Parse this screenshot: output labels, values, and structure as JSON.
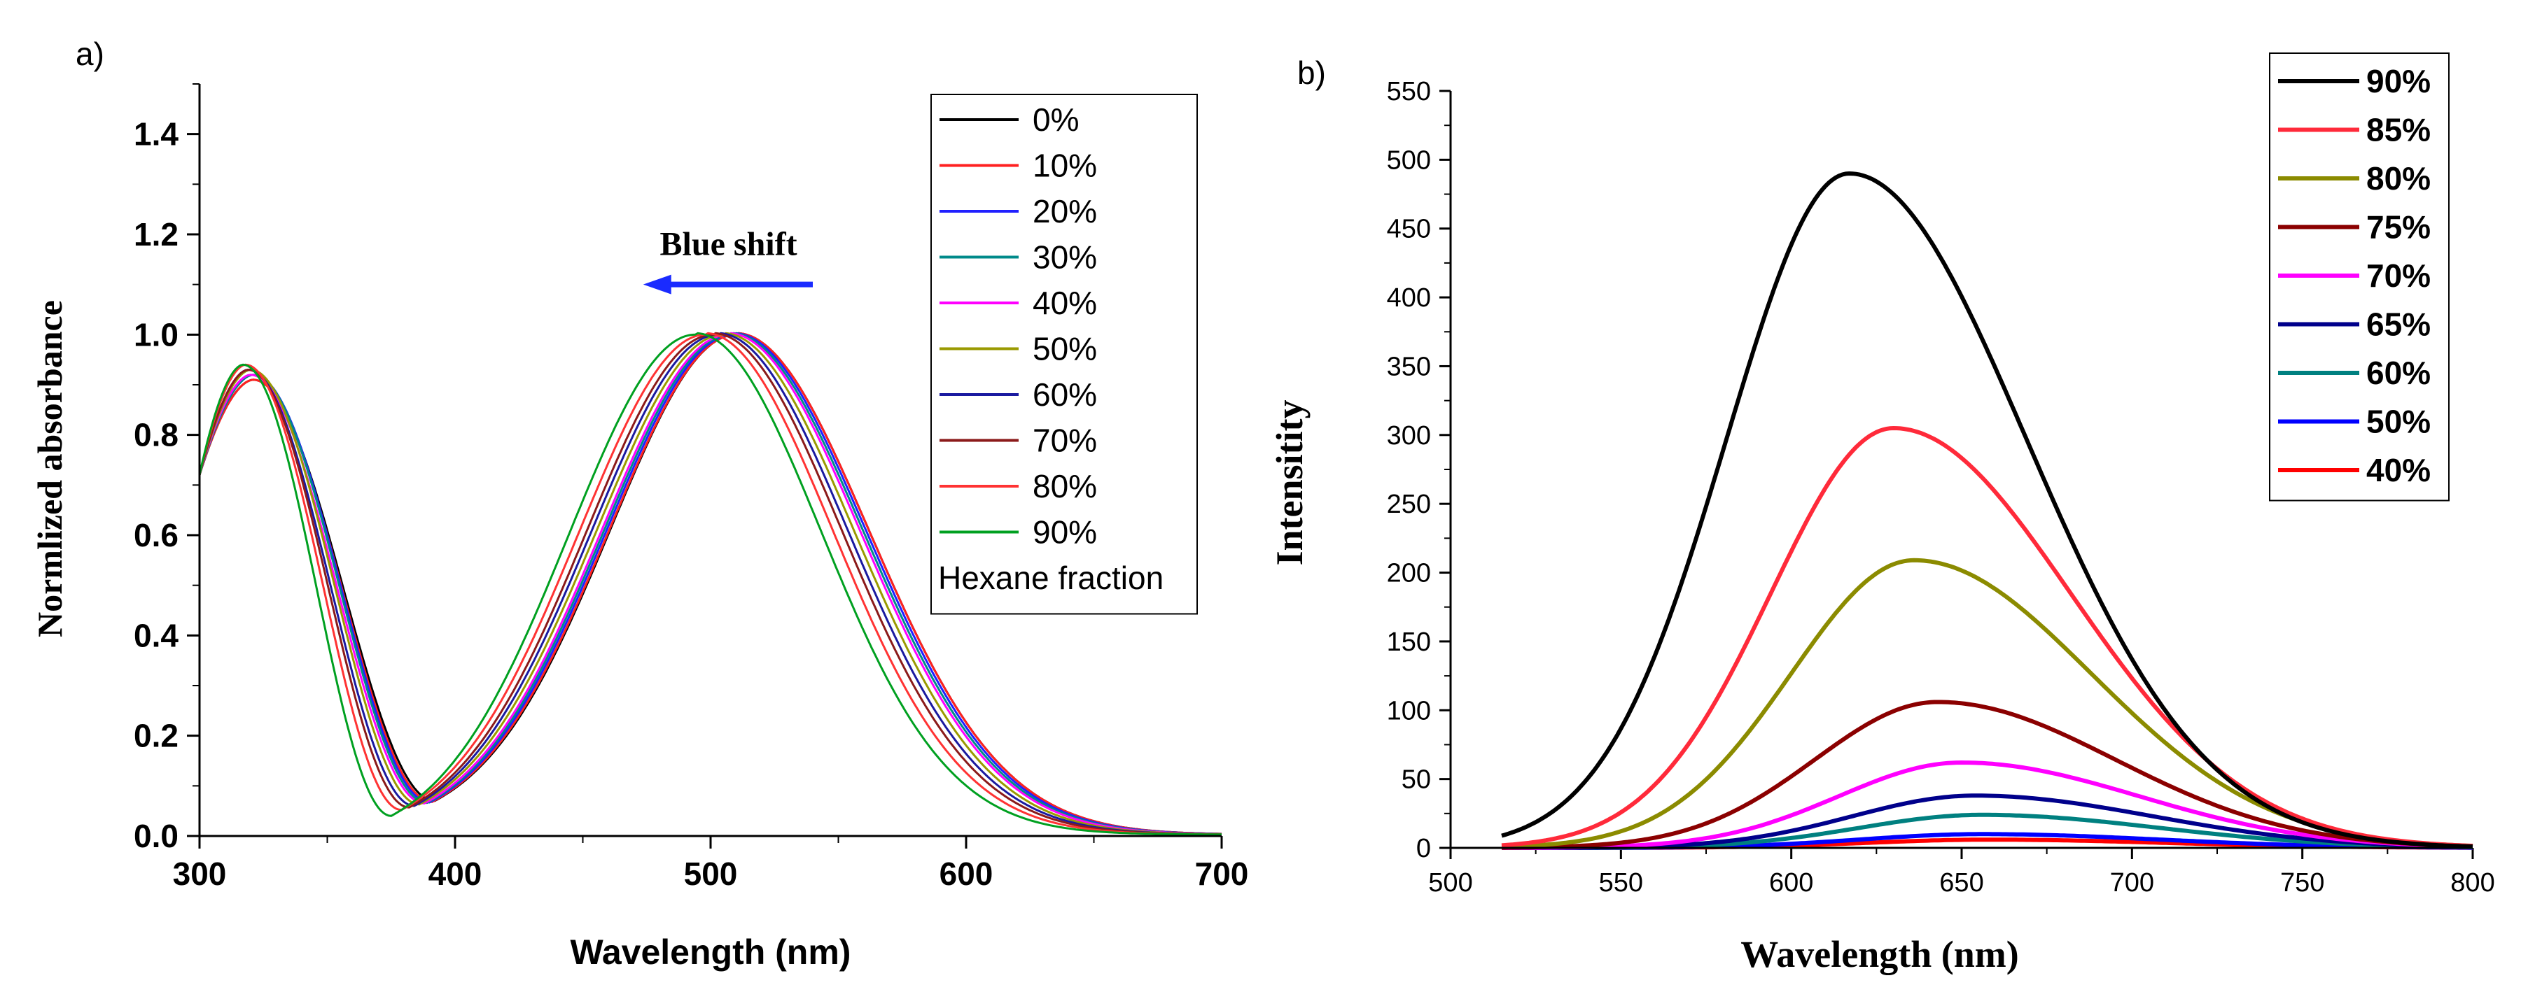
{
  "chart_data": [
    {
      "panel_label": "a)",
      "type": "line",
      "xlabel": "Wavelength (nm)",
      "ylabel": "Normlized absorbance",
      "xlim": [
        300,
        700
      ],
      "ylim": [
        0,
        1.5
      ],
      "xticks": [
        300,
        400,
        500,
        600,
        700
      ],
      "yticks": [
        0.0,
        0.2,
        0.4,
        0.6,
        0.8,
        1.0,
        1.2,
        1.4
      ],
      "grid": false,
      "legend_placement": "top-right",
      "legend_title": "Hexane fraction",
      "annotation": {
        "text": "Blue shift",
        "arrow_color": "#1a2bff",
        "direction": "left",
        "x_from": 540,
        "x_to": 475,
        "y": 1.1
      },
      "series": [
        {
          "name": "0%",
          "color": "#000000",
          "peak1_nm": 321,
          "peak2_nm": 510,
          "peak1_abs": 0.91,
          "min_nm": 392,
          "min_abs": 0.07
        },
        {
          "name": "10%",
          "color": "#ff2020",
          "peak1_nm": 321,
          "peak2_nm": 510,
          "peak1_abs": 0.91,
          "min_nm": 391,
          "min_abs": 0.068
        },
        {
          "name": "20%",
          "color": "#2020ff",
          "peak1_nm": 321,
          "peak2_nm": 509,
          "peak1_abs": 0.92,
          "min_nm": 390,
          "min_abs": 0.067
        },
        {
          "name": "30%",
          "color": "#008a8a",
          "peak1_nm": 321,
          "peak2_nm": 508,
          "peak1_abs": 0.92,
          "min_nm": 389,
          "min_abs": 0.066
        },
        {
          "name": "40%",
          "color": "#ff00ff",
          "peak1_nm": 320,
          "peak2_nm": 507,
          "peak1_abs": 0.92,
          "min_nm": 388,
          "min_abs": 0.065
        },
        {
          "name": "50%",
          "color": "#9a9a00",
          "peak1_nm": 320,
          "peak2_nm": 505,
          "peak1_abs": 0.93,
          "min_nm": 386,
          "min_abs": 0.063
        },
        {
          "name": "60%",
          "color": "#1a1aa0",
          "peak1_nm": 319,
          "peak2_nm": 503,
          "peak1_abs": 0.93,
          "min_nm": 384,
          "min_abs": 0.06
        },
        {
          "name": "70%",
          "color": "#8b1a1a",
          "peak1_nm": 319,
          "peak2_nm": 501,
          "peak1_abs": 0.93,
          "min_nm": 382,
          "min_abs": 0.057
        },
        {
          "name": "80%",
          "color": "#ff3333",
          "peak1_nm": 318,
          "peak2_nm": 498,
          "peak1_abs": 0.94,
          "min_nm": 379,
          "min_abs": 0.052
        },
        {
          "name": "90%",
          "color": "#00a020",
          "peak1_nm": 317,
          "peak2_nm": 494,
          "peak1_abs": 0.94,
          "min_nm": 375,
          "min_abs": 0.04
        }
      ]
    },
    {
      "panel_label": "b)",
      "type": "line",
      "xlabel": "Wavelength (nm)",
      "ylabel": "Intensitity",
      "xlim": [
        500,
        800
      ],
      "ylim": [
        0,
        550
      ],
      "xticks": [
        500,
        550,
        600,
        650,
        700,
        750,
        800
      ],
      "yticks": [
        0,
        50,
        100,
        150,
        200,
        250,
        300,
        350,
        400,
        450,
        500,
        550
      ],
      "grid": false,
      "legend_placement": "top-right",
      "series": [
        {
          "name": "90%",
          "color": "#000000",
          "peak_nm": 617,
          "peak_intensity": 490
        },
        {
          "name": "85%",
          "color": "#ff2a3a",
          "peak_nm": 630,
          "peak_intensity": 305
        },
        {
          "name": "80%",
          "color": "#8b8b00",
          "peak_nm": 636,
          "peak_intensity": 209
        },
        {
          "name": "75%",
          "color": "#8b0000",
          "peak_nm": 643,
          "peak_intensity": 106
        },
        {
          "name": "70%",
          "color": "#ff00ff",
          "peak_nm": 650,
          "peak_intensity": 62
        },
        {
          "name": "65%",
          "color": "#00008b",
          "peak_nm": 654,
          "peak_intensity": 38
        },
        {
          "name": "60%",
          "color": "#008080",
          "peak_nm": 656,
          "peak_intensity": 24
        },
        {
          "name": "50%",
          "color": "#0000ff",
          "peak_nm": 656,
          "peak_intensity": 10
        },
        {
          "name": "40%",
          "color": "#ff0000",
          "peak_nm": 658,
          "peak_intensity": 6
        }
      ]
    }
  ]
}
